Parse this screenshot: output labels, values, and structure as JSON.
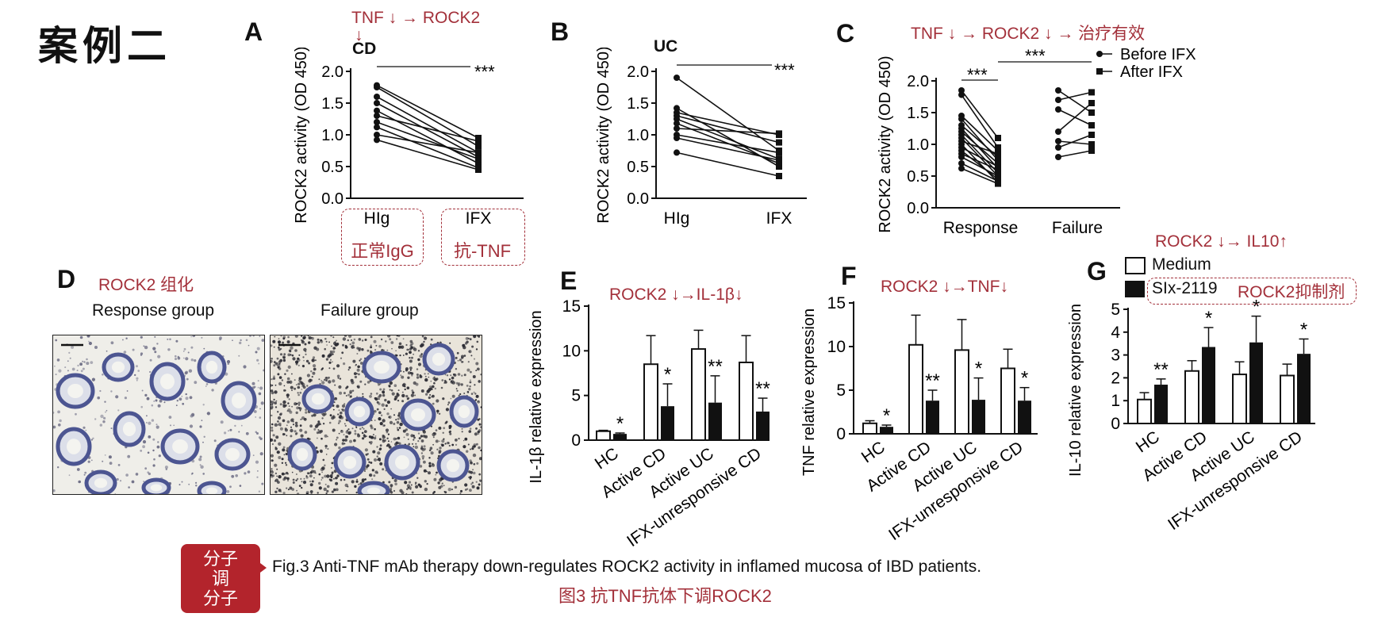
{
  "slide_title": "案例二",
  "panels": {
    "A": {
      "letter": "A",
      "note_line1": "TNF ↓ → ROCK2",
      "note_line2": "↓",
      "group": "CD",
      "ylabel": "ROCK2 activity (OD 450)",
      "x_labels": [
        "HIg",
        "IFX"
      ],
      "x_notes": [
        "正常IgG",
        "抗-TNF"
      ],
      "sig": "***",
      "y_ticks": [
        "0.0",
        "0.5",
        "1.0",
        "1.5",
        "2.0"
      ]
    },
    "B": {
      "letter": "B",
      "group": "UC",
      "ylabel": "ROCK2 activity (OD 450)",
      "x_labels": [
        "HIg",
        "IFX"
      ],
      "sig": "***",
      "y_ticks": [
        "0.0",
        "0.5",
        "1.0",
        "1.5",
        "2.0"
      ]
    },
    "C": {
      "letter": "C",
      "note": "TNF ↓ → ROCK2 ↓ →  治疗有效",
      "ylabel": "ROCK2 activity (OD 450)",
      "x_labels": [
        "Response",
        "Failure"
      ],
      "sig1": "***",
      "sig2": "***",
      "legend": [
        "Before IFX",
        "After IFX"
      ],
      "y_ticks": [
        "0.0",
        "0.5",
        "1.0",
        "1.5",
        "2.0"
      ]
    },
    "D": {
      "letter": "D",
      "note": "ROCK2 组化",
      "groups": [
        "Response group",
        "Failure group"
      ]
    },
    "E": {
      "letter": "E",
      "note": "ROCK2 ↓→IL-1β↓",
      "ylabel": "IL-1β relative expression",
      "y_ticks": [
        "0",
        "5",
        "10",
        "15"
      ]
    },
    "F": {
      "letter": "F",
      "note": "ROCK2 ↓→TNF↓",
      "ylabel": "TNF relative expression",
      "y_ticks": [
        "0",
        "5",
        "10",
        "15"
      ]
    },
    "G": {
      "letter": "G",
      "note": "ROCK2 ↓→ IL10↑",
      "ylabel": "IL-10 relative expression",
      "legend": [
        "Medium",
        "SIx-2119"
      ],
      "legend_note": "ROCK2抑制剂",
      "y_ticks": [
        "0",
        "1",
        "2",
        "3",
        "4",
        "5"
      ]
    }
  },
  "caption": {
    "badge_lines": [
      "分子",
      "调",
      "分子"
    ],
    "english": "Fig.3 Anti-TNF mAb therapy down-regulates ROCK2 activity in inflamed mucosa of IBD patients.",
    "chinese": "图3 抗TNF抗体下调ROCK2"
  },
  "colors": {
    "accent_red": "#a3303a",
    "badge_red": "#b3242c"
  },
  "chart_data": [
    {
      "id": "A",
      "type": "line",
      "title": "CD",
      "ylabel": "ROCK2 activity (OD 450)",
      "categories": [
        "HIg",
        "IFX"
      ],
      "ylim": [
        0,
        2
      ],
      "pairs": [
        [
          1.78,
          0.95
        ],
        [
          1.75,
          0.82
        ],
        [
          1.6,
          0.72
        ],
        [
          1.5,
          0.65
        ],
        [
          1.38,
          0.55
        ],
        [
          1.3,
          0.9
        ],
        [
          1.2,
          0.62
        ],
        [
          1.12,
          0.48
        ],
        [
          1.0,
          0.72
        ],
        [
          0.92,
          0.45
        ]
      ],
      "annotation": "***"
    },
    {
      "id": "B",
      "type": "line",
      "title": "UC",
      "ylabel": "ROCK2 activity (OD 450)",
      "categories": [
        "HIg",
        "IFX"
      ],
      "ylim": [
        0,
        2
      ],
      "pairs": [
        [
          1.9,
          0.75
        ],
        [
          1.42,
          0.5
        ],
        [
          1.35,
          1.0
        ],
        [
          1.3,
          0.88
        ],
        [
          1.25,
          0.62
        ],
        [
          1.18,
          0.55
        ],
        [
          1.1,
          1.02
        ],
        [
          1.0,
          0.72
        ],
        [
          0.95,
          0.6
        ],
        [
          0.72,
          0.35
        ]
      ],
      "annotation": "***"
    },
    {
      "id": "C",
      "type": "line",
      "ylabel": "ROCK2 activity (OD 450)",
      "categories": [
        "Response",
        "Failure"
      ],
      "ylim": [
        0,
        2
      ],
      "legend": [
        "Before IFX",
        "After IFX"
      ],
      "response_pairs": [
        [
          1.85,
          1.1
        ],
        [
          1.78,
          0.95
        ],
        [
          1.45,
          0.9
        ],
        [
          1.4,
          0.75
        ],
        [
          1.3,
          0.8
        ],
        [
          1.25,
          0.62
        ],
        [
          1.2,
          0.7
        ],
        [
          1.15,
          0.55
        ],
        [
          1.1,
          0.5
        ],
        [
          1.05,
          0.85
        ],
        [
          1.0,
          0.4
        ],
        [
          0.95,
          0.65
        ],
        [
          0.9,
          0.45
        ],
        [
          0.85,
          0.6
        ],
        [
          0.8,
          0.5
        ],
        [
          0.7,
          0.42
        ],
        [
          0.62,
          0.38
        ]
      ],
      "failure_pairs": [
        [
          1.85,
          1.5
        ],
        [
          1.7,
          1.82
        ],
        [
          1.55,
          1.3
        ],
        [
          1.2,
          1.65
        ],
        [
          1.05,
          1.0
        ],
        [
          0.95,
          1.15
        ],
        [
          0.8,
          0.9
        ]
      ],
      "annotations": [
        "***",
        "***"
      ]
    },
    {
      "id": "E",
      "type": "bar",
      "ylabel": "IL-1β relative expression",
      "categories": [
        "HC",
        "Active CD",
        "Active UC",
        "IFX-unresponsive CD"
      ],
      "ylim": [
        0,
        15
      ],
      "series": [
        {
          "values": [
            1.0,
            8.5,
            10.2,
            8.7
          ],
          "errors": [
            0.1,
            3.2,
            2.1,
            3.0
          ]
        },
        {
          "values": [
            0.7,
            3.8,
            4.2,
            3.2
          ],
          "errors": [
            0.1,
            2.5,
            3.0,
            1.5
          ]
        }
      ],
      "significance": [
        "*",
        "*",
        "**",
        "**"
      ]
    },
    {
      "id": "F",
      "type": "bar",
      "ylabel": "TNF relative expression",
      "categories": [
        "HC",
        "Active CD",
        "Active UC",
        "IFX-unresponsive CD"
      ],
      "ylim": [
        0,
        15
      ],
      "series": [
        {
          "values": [
            1.2,
            10.2,
            9.6,
            7.5
          ],
          "errors": [
            0.3,
            3.4,
            3.5,
            2.2
          ]
        },
        {
          "values": [
            0.8,
            3.8,
            3.9,
            3.8
          ],
          "errors": [
            0.2,
            1.2,
            2.5,
            1.5
          ]
        }
      ],
      "significance": [
        "*",
        "**",
        "*",
        "*"
      ]
    },
    {
      "id": "G",
      "type": "bar",
      "ylabel": "IL-10 relative expression",
      "categories": [
        "HC",
        "Active CD",
        "Active UC",
        "IFX-unresponsive CD"
      ],
      "ylim": [
        0,
        5
      ],
      "legend": [
        "Medium",
        "SIx-2119"
      ],
      "series": [
        {
          "name": "Medium",
          "values": [
            1.05,
            2.3,
            2.15,
            2.1
          ],
          "errors": [
            0.3,
            0.45,
            0.55,
            0.5
          ]
        },
        {
          "name": "SIx-2119",
          "values": [
            1.7,
            3.35,
            3.55,
            3.05
          ],
          "errors": [
            0.25,
            0.85,
            1.15,
            0.65
          ]
        }
      ],
      "significance": [
        "**",
        "*",
        "*",
        "*"
      ]
    }
  ]
}
